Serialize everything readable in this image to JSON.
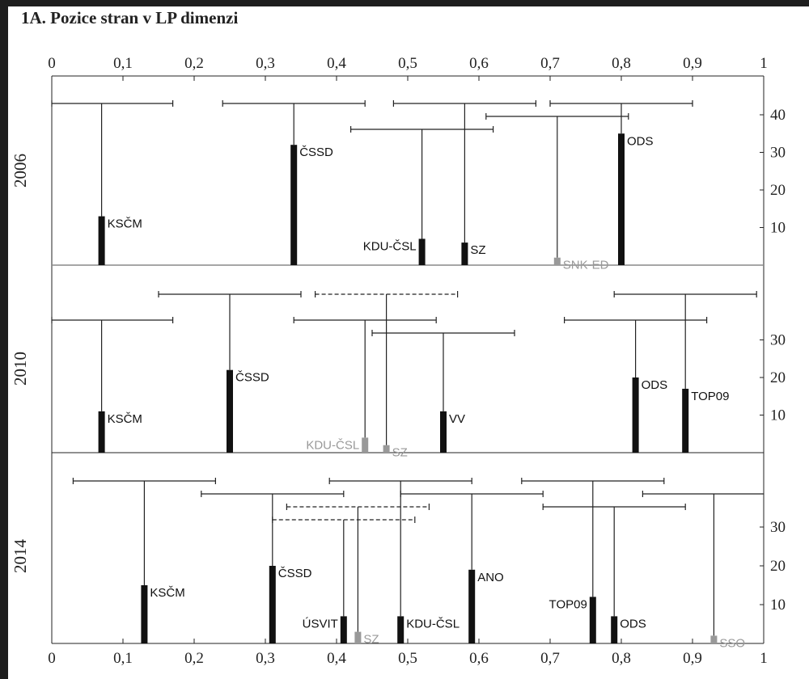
{
  "title": "1A. Pozice stran v LP dimenzi",
  "colors": {
    "main": "#111111",
    "gray": "#999999"
  },
  "chart_data": {
    "type": "error-bar-strip",
    "xlim": [
      0,
      1
    ],
    "x_ticks": [
      "0",
      "0,1",
      "0,2",
      "0,3",
      "0,4",
      "0,5",
      "0,6",
      "0,7",
      "0,8",
      "0,9",
      "1"
    ],
    "panels": [
      {
        "year": "2006",
        "y_ticks": [
          "10",
          "20",
          "30",
          "40"
        ],
        "ylim": [
          0,
          45
        ],
        "parties": [
          {
            "label": "KSČM",
            "x": 0.07,
            "value": 13,
            "lo": 0.0,
            "hi": 0.17,
            "level": 0,
            "color": "main",
            "dashed": false,
            "label_side": "right"
          },
          {
            "label": "ČSSD",
            "x": 0.34,
            "value": 32,
            "lo": 0.24,
            "hi": 0.44,
            "level": 0,
            "color": "main",
            "dashed": false,
            "label_side": "right"
          },
          {
            "label": "KDU-ČSL",
            "x": 0.52,
            "value": 7,
            "lo": 0.42,
            "hi": 0.62,
            "level": 2,
            "color": "main",
            "dashed": false,
            "label_side": "left"
          },
          {
            "label": "SZ",
            "x": 0.58,
            "value": 6,
            "lo": 0.48,
            "hi": 0.68,
            "level": 0,
            "color": "main",
            "dashed": false,
            "label_side": "right"
          },
          {
            "label": "SNK-ED",
            "x": 0.71,
            "value": 2,
            "lo": 0.61,
            "hi": 0.81,
            "level": 1,
            "color": "gray",
            "dashed": false,
            "label_side": "right"
          },
          {
            "label": "ODS",
            "x": 0.8,
            "value": 35,
            "lo": 0.7,
            "hi": 0.9,
            "level": 0,
            "color": "main",
            "dashed": false,
            "label_side": "right"
          }
        ]
      },
      {
        "year": "2010",
        "y_ticks": [
          "10",
          "20",
          "30"
        ],
        "ylim": [
          0,
          42
        ],
        "parties": [
          {
            "label": "KSČM",
            "x": 0.07,
            "value": 11,
            "lo": 0.0,
            "hi": 0.17,
            "level": 2,
            "color": "main",
            "dashed": false,
            "label_side": "right"
          },
          {
            "label": "ČSSD",
            "x": 0.25,
            "value": 22,
            "lo": 0.15,
            "hi": 0.35,
            "level": 0,
            "color": "main",
            "dashed": false,
            "label_side": "right"
          },
          {
            "label": "KDU-ČSL",
            "x": 0.44,
            "value": 4,
            "lo": 0.34,
            "hi": 0.54,
            "level": 2,
            "color": "gray",
            "dashed": false,
            "label_side": "left"
          },
          {
            "label": "SZ",
            "x": 0.47,
            "value": 2,
            "lo": 0.37,
            "hi": 0.57,
            "level": 0,
            "color": "gray",
            "dashed": true,
            "label_side": "right"
          },
          {
            "label": "VV",
            "x": 0.55,
            "value": 11,
            "lo": 0.45,
            "hi": 0.65,
            "level": 3,
            "color": "main",
            "dashed": false,
            "label_side": "right"
          },
          {
            "label": "ODS",
            "x": 0.82,
            "value": 20,
            "lo": 0.72,
            "hi": 0.92,
            "level": 2,
            "color": "main",
            "dashed": false,
            "label_side": "right"
          },
          {
            "label": "TOP09",
            "x": 0.89,
            "value": 17,
            "lo": 0.79,
            "hi": 0.99,
            "level": 0,
            "color": "main",
            "dashed": false,
            "label_side": "right"
          }
        ]
      },
      {
        "year": "2014",
        "y_ticks": [
          "10",
          "20",
          "30"
        ],
        "ylim": [
          0,
          42
        ],
        "parties": [
          {
            "label": "KSČM",
            "x": 0.13,
            "value": 15,
            "lo": 0.03,
            "hi": 0.23,
            "level": 0,
            "color": "main",
            "dashed": false,
            "label_side": "right"
          },
          {
            "label": "ČSSD",
            "x": 0.31,
            "value": 20,
            "lo": 0.21,
            "hi": 0.41,
            "level": 1,
            "color": "main",
            "dashed": false,
            "label_side": "right"
          },
          {
            "label": "ÚSVIT",
            "x": 0.41,
            "value": 7,
            "lo": 0.31,
            "hi": 0.51,
            "level": 3,
            "color": "main",
            "dashed": true,
            "label_side": "left"
          },
          {
            "label": "SZ",
            "x": 0.43,
            "value": 3,
            "lo": 0.33,
            "hi": 0.53,
            "level": 2,
            "color": "gray",
            "dashed": true,
            "label_side": "right"
          },
          {
            "label": "KDU-ČSL",
            "x": 0.49,
            "value": 7,
            "lo": 0.39,
            "hi": 0.59,
            "level": 0,
            "color": "main",
            "dashed": false,
            "label_side": "right"
          },
          {
            "label": "ANO",
            "x": 0.59,
            "value": 19,
            "lo": 0.49,
            "hi": 0.69,
            "level": 1,
            "color": "main",
            "dashed": false,
            "label_side": "right"
          },
          {
            "label": "TOP09",
            "x": 0.76,
            "value": 12,
            "lo": 0.66,
            "hi": 0.86,
            "level": 0,
            "color": "main",
            "dashed": false,
            "label_side": "left"
          },
          {
            "label": "ODS",
            "x": 0.79,
            "value": 7,
            "lo": 0.69,
            "hi": 0.89,
            "level": 2,
            "color": "main",
            "dashed": false,
            "label_side": "right"
          },
          {
            "label": "SSO",
            "x": 0.93,
            "value": 2,
            "lo": 0.83,
            "hi": 1.03,
            "level": 1,
            "color": "gray",
            "dashed": false,
            "label_side": "right"
          }
        ]
      }
    ]
  }
}
